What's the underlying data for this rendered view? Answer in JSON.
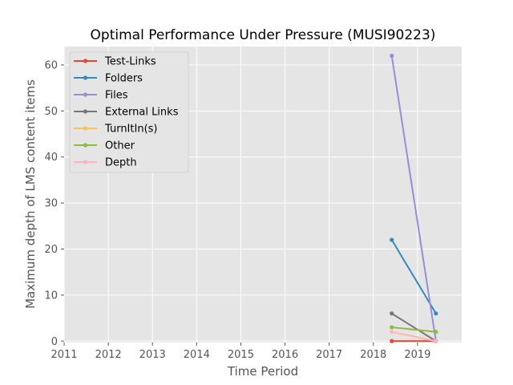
{
  "chart_data": {
    "type": "line",
    "title": "Optimal Performance Under Pressure (MUSI90223)",
    "xlabel": "Time Period",
    "ylabel": "Maximum depth of LMS content items",
    "xlim": [
      2011,
      2020
    ],
    "ylim": [
      -0.3,
      64
    ],
    "xticks": [
      "2011",
      "2012",
      "2013",
      "2014",
      "2015",
      "2016",
      "2017",
      "2018",
      "2019"
    ],
    "yticks": [
      "0",
      "10",
      "20",
      "30",
      "40",
      "50",
      "60"
    ],
    "x": [
      "2018-06",
      "2019-06"
    ],
    "grid": true,
    "legend_position": "top-left",
    "series": [
      {
        "name": "Test-Links",
        "values": [
          0,
          0
        ],
        "color": "#E24A33"
      },
      {
        "name": "Folders",
        "values": [
          22,
          6
        ],
        "color": "#348ABD"
      },
      {
        "name": "Files",
        "values": [
          62,
          0
        ],
        "color": "#988ED5"
      },
      {
        "name": "External Links",
        "values": [
          6,
          0
        ],
        "color": "#777777"
      },
      {
        "name": "TurnItIn(s)",
        "values": [
          2,
          0
        ],
        "color": "#FBC15E"
      },
      {
        "name": "Other",
        "values": [
          3,
          2
        ],
        "color": "#8EBA42"
      },
      {
        "name": "Depth",
        "values": [
          2,
          0
        ],
        "color": "#FFB5B8"
      }
    ]
  }
}
